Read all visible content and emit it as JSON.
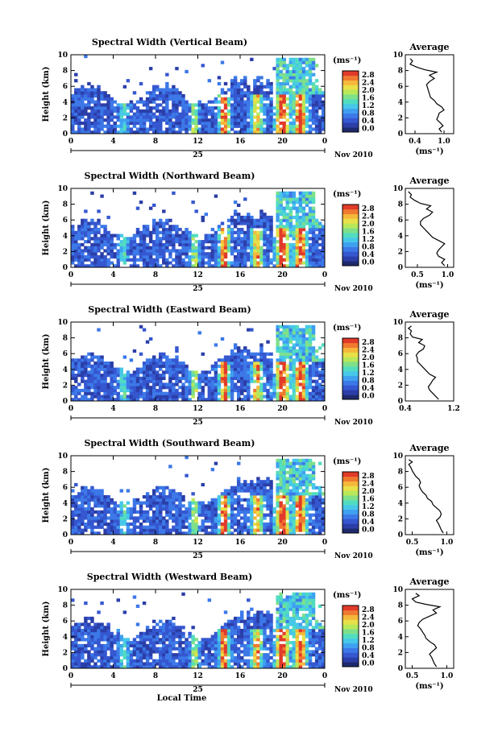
{
  "chart_data": [
    {
      "type": "heatmap",
      "title": "Spectral Width (Vertical Beam)",
      "ylabel": "Height (km)",
      "xlim": [
        0,
        24
      ],
      "ylim": [
        0,
        10
      ],
      "x_ticks": [
        "0",
        "4",
        "8",
        "12",
        "16",
        "20",
        "0"
      ],
      "y_ticks": [
        "0",
        "2",
        "4",
        "6",
        "8",
        "10"
      ],
      "date_label": "25",
      "month_label": "Nov 2010",
      "colorbar": {
        "unit": "(ms⁻¹)",
        "ticks": [
          "0.0",
          "0.4",
          "0.8",
          "1.2",
          "1.6",
          "2.0",
          "2.4",
          "2.8"
        ],
        "range": [
          0,
          2.8
        ]
      },
      "average": {
        "title": "Average",
        "xlabel": "(ms⁻¹)",
        "x_ticks": [
          "0.4",
          "1.0"
        ],
        "xlim": [
          0.2,
          1.2
        ],
        "profile": [
          [
            0.95,
            0.2
          ],
          [
            0.9,
            0.6
          ],
          [
            0.98,
            1.0
          ],
          [
            0.92,
            1.4
          ],
          [
            0.85,
            1.8
          ],
          [
            0.88,
            2.2
          ],
          [
            0.9,
            2.6
          ],
          [
            1.0,
            3.0
          ],
          [
            0.95,
            3.4
          ],
          [
            0.85,
            3.8
          ],
          [
            0.8,
            4.2
          ],
          [
            0.72,
            4.6
          ],
          [
            0.7,
            5.0
          ],
          [
            0.68,
            5.4
          ],
          [
            0.66,
            5.8
          ],
          [
            0.64,
            6.2
          ],
          [
            0.7,
            6.6
          ],
          [
            0.8,
            7.0
          ],
          [
            0.7,
            7.4
          ],
          [
            0.85,
            7.8
          ],
          [
            0.6,
            8.1
          ],
          [
            0.45,
            8.4
          ],
          [
            0.3,
            8.8
          ],
          [
            0.35,
            9.2
          ],
          [
            0.3,
            9.5
          ]
        ]
      }
    },
    {
      "type": "heatmap",
      "title": "Spectral Width (Northward Beam)",
      "ylabel": "Height (km)",
      "xlim": [
        0,
        24
      ],
      "ylim": [
        0,
        10
      ],
      "x_ticks": [
        "0",
        "4",
        "8",
        "12",
        "16",
        "20",
        "0"
      ],
      "y_ticks": [
        "0",
        "2",
        "4",
        "6",
        "8",
        "10"
      ],
      "date_label": "25",
      "month_label": "Nov 2010",
      "colorbar": {
        "unit": "(ms⁻¹)",
        "ticks": [
          "0.0",
          "0.4",
          "0.8",
          "1.2",
          "1.6",
          "2.0",
          "2.4",
          "2.8"
        ],
        "range": [
          0,
          2.8
        ]
      },
      "average": {
        "title": "Average",
        "xlabel": "(ms⁻¹)",
        "x_ticks": [
          "0.5",
          "1.0"
        ],
        "xlim": [
          0.3,
          1.1
        ],
        "profile": [
          [
            0.95,
            0.2
          ],
          [
            0.9,
            0.6
          ],
          [
            0.95,
            1.0
          ],
          [
            0.85,
            1.4
          ],
          [
            0.82,
            1.8
          ],
          [
            0.85,
            2.2
          ],
          [
            0.9,
            2.6
          ],
          [
            0.95,
            3.0
          ],
          [
            0.85,
            3.4
          ],
          [
            0.75,
            3.8
          ],
          [
            0.7,
            4.2
          ],
          [
            0.65,
            4.6
          ],
          [
            0.6,
            5.0
          ],
          [
            0.55,
            5.4
          ],
          [
            0.55,
            5.8
          ],
          [
            0.6,
            6.2
          ],
          [
            0.7,
            6.6
          ],
          [
            0.75,
            7.0
          ],
          [
            0.65,
            7.4
          ],
          [
            0.72,
            7.8
          ],
          [
            0.55,
            8.1
          ],
          [
            0.45,
            8.5
          ],
          [
            0.38,
            8.9
          ],
          [
            0.4,
            9.2
          ],
          [
            0.35,
            9.6
          ]
        ]
      }
    },
    {
      "type": "heatmap",
      "title": "Spectral Width (Eastward Beam)",
      "ylabel": "Height (km)",
      "xlim": [
        0,
        24
      ],
      "ylim": [
        0,
        10
      ],
      "x_ticks": [
        "0",
        "4",
        "8",
        "12",
        "16",
        "20",
        "0"
      ],
      "y_ticks": [
        "0",
        "2",
        "4",
        "6",
        "8",
        "10"
      ],
      "date_label": "25",
      "month_label": "Nov 2010",
      "colorbar": {
        "unit": "(ms⁻¹)",
        "ticks": [
          "0.0",
          "0.4",
          "0.8",
          "1.2",
          "1.6",
          "2.0",
          "2.4",
          "2.8"
        ],
        "range": [
          0,
          2.8
        ]
      },
      "average": {
        "title": "Average",
        "xlabel": "",
        "x_ticks": [
          "0.4",
          "1.2"
        ],
        "xlim": [
          0.4,
          1.2
        ],
        "profile": [
          [
            0.95,
            0.2
          ],
          [
            0.9,
            0.6
          ],
          [
            0.85,
            1.0
          ],
          [
            0.8,
            1.4
          ],
          [
            0.78,
            1.8
          ],
          [
            0.82,
            2.2
          ],
          [
            0.85,
            2.6
          ],
          [
            0.9,
            3.0
          ],
          [
            0.8,
            3.4
          ],
          [
            0.75,
            3.8
          ],
          [
            0.7,
            4.2
          ],
          [
            0.65,
            4.6
          ],
          [
            0.6,
            5.0
          ],
          [
            0.6,
            5.4
          ],
          [
            0.58,
            5.8
          ],
          [
            0.62,
            6.2
          ],
          [
            0.7,
            6.6
          ],
          [
            0.72,
            7.0
          ],
          [
            0.62,
            7.4
          ],
          [
            0.68,
            7.8
          ],
          [
            0.52,
            8.1
          ],
          [
            0.48,
            8.5
          ],
          [
            0.5,
            8.9
          ],
          [
            0.45,
            9.2
          ],
          [
            0.5,
            9.5
          ]
        ]
      }
    },
    {
      "type": "heatmap",
      "title": "Spectral Width (Southward Beam)",
      "ylabel": "Height (km)",
      "xlim": [
        0,
        24
      ],
      "ylim": [
        0,
        10
      ],
      "x_ticks": [
        "0",
        "4",
        "8",
        "12",
        "16",
        "20",
        "0"
      ],
      "y_ticks": [
        "0",
        "2",
        "4",
        "6",
        "8",
        "10"
      ],
      "date_label": "25",
      "month_label": "Nov 2010",
      "colorbar": {
        "unit": "(ms⁻¹)",
        "ticks": [
          "0.0",
          "0.4",
          "0.8",
          "1.2",
          "1.6",
          "2.0",
          "2.4",
          "2.8"
        ],
        "range": [
          0,
          2.8
        ]
      },
      "average": {
        "title": "Average",
        "xlabel": "(ms⁻¹)",
        "x_ticks": [
          "0.5",
          "1.0"
        ],
        "xlim": [
          0.4,
          1.1
        ],
        "profile": [
          [
            0.95,
            0.2
          ],
          [
            0.92,
            0.6
          ],
          [
            0.9,
            1.0
          ],
          [
            0.88,
            1.4
          ],
          [
            0.85,
            1.8
          ],
          [
            0.9,
            2.2
          ],
          [
            0.92,
            2.6
          ],
          [
            0.9,
            3.0
          ],
          [
            0.85,
            3.4
          ],
          [
            0.8,
            3.8
          ],
          [
            0.78,
            4.2
          ],
          [
            0.72,
            4.6
          ],
          [
            0.7,
            5.0
          ],
          [
            0.65,
            5.4
          ],
          [
            0.62,
            5.8
          ],
          [
            0.6,
            6.2
          ],
          [
            0.62,
            6.6
          ],
          [
            0.6,
            7.0
          ],
          [
            0.55,
            7.4
          ],
          [
            0.52,
            7.8
          ],
          [
            0.5,
            8.1
          ],
          [
            0.48,
            8.5
          ],
          [
            0.45,
            8.9
          ],
          [
            0.5,
            9.2
          ],
          [
            0.45,
            9.5
          ]
        ]
      }
    },
    {
      "type": "heatmap",
      "title": "Spectral Width (Westward Beam)",
      "ylabel": "Height (km)",
      "xlabel": "Local Time",
      "xlim": [
        0,
        24
      ],
      "ylim": [
        0,
        10
      ],
      "x_ticks": [
        "0",
        "4",
        "8",
        "12",
        "16",
        "20",
        "0"
      ],
      "y_ticks": [
        "0",
        "2",
        "4",
        "6",
        "8",
        "10"
      ],
      "date_label": "25",
      "month_label": "Nov 2010",
      "colorbar": {
        "unit": "(ms⁻¹)",
        "ticks": [
          "0.0",
          "0.4",
          "0.8",
          "1.2",
          "1.6",
          "2.0",
          "2.4",
          "2.8"
        ],
        "range": [
          0,
          2.8
        ]
      },
      "average": {
        "title": "Average",
        "xlabel": "(ms⁻¹)",
        "x_ticks": [
          "0.5",
          "1.0"
        ],
        "xlim": [
          0.4,
          1.1
        ],
        "profile": [
          [
            0.85,
            0.2
          ],
          [
            0.82,
            0.6
          ],
          [
            0.8,
            1.0
          ],
          [
            0.78,
            1.4
          ],
          [
            0.75,
            1.8
          ],
          [
            0.8,
            2.2
          ],
          [
            0.85,
            2.6
          ],
          [
            0.82,
            3.0
          ],
          [
            0.75,
            3.4
          ],
          [
            0.7,
            3.8
          ],
          [
            0.68,
            4.2
          ],
          [
            0.65,
            4.6
          ],
          [
            0.62,
            5.0
          ],
          [
            0.58,
            5.4
          ],
          [
            0.6,
            5.8
          ],
          [
            0.65,
            6.2
          ],
          [
            0.75,
            6.6
          ],
          [
            0.85,
            7.0
          ],
          [
            0.8,
            7.4
          ],
          [
            0.9,
            7.8
          ],
          [
            0.7,
            8.1
          ],
          [
            0.55,
            8.4
          ],
          [
            0.5,
            8.8
          ],
          [
            0.6,
            9.2
          ],
          [
            0.55,
            9.5
          ]
        ]
      }
    }
  ]
}
